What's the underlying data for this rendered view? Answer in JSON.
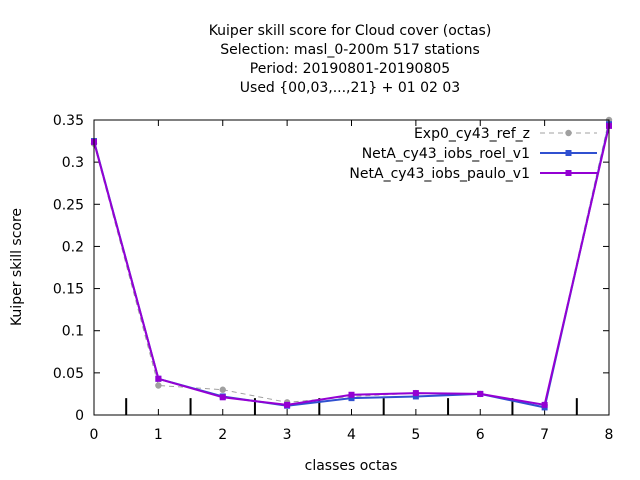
{
  "chart_data": {
    "type": "line",
    "title_lines": [
      "Kuiper skill score  for Cloud cover (octas)",
      "Selection: masl_0-200m    517 stations",
      "Period: 20190801-20190805",
      "Used {00,03,...,21} + 01 02 03"
    ],
    "xlabel": "classes octas",
    "ylabel": "Kuiper skill score",
    "xlim": [
      0,
      8
    ],
    "ylim": [
      0,
      0.35
    ],
    "x_ticks": [
      0,
      1,
      2,
      3,
      4,
      5,
      6,
      7,
      8
    ],
    "x_tick_labels": [
      "0",
      "1",
      "2",
      "3",
      "4",
      "5",
      "6",
      "7",
      "8"
    ],
    "y_ticks": [
      0,
      0.05,
      0.1,
      0.15,
      0.2,
      0.25,
      0.3,
      0.35
    ],
    "y_tick_labels": [
      "0",
      "0.05",
      "0.1",
      "0.15",
      "0.2",
      "0.25",
      "0.3",
      "0.35"
    ],
    "grid": false,
    "legend_position": "top-right",
    "x": [
      0,
      1,
      2,
      3,
      4,
      5,
      6,
      7,
      8
    ],
    "series": [
      {
        "name": "Exp0_cy43_ref_z",
        "color": "#a0a0a0",
        "dashed": true,
        "marker": "circle",
        "values": [
          0.322,
          0.035,
          0.03,
          0.015,
          0.022,
          0.026,
          0.025,
          0.012,
          0.35
        ]
      },
      {
        "name": "NetA_cy43_iobs_roel_v1",
        "color": "#3050d0",
        "dashed": false,
        "marker": "square",
        "values": [
          0.325,
          0.043,
          0.022,
          0.011,
          0.02,
          0.022,
          0.025,
          0.009,
          0.345
        ]
      },
      {
        "name": "NetA_cy43_iobs_paulo_v1",
        "color": "#9400d3",
        "dashed": false,
        "marker": "square",
        "values": [
          0.324,
          0.043,
          0.021,
          0.012,
          0.024,
          0.026,
          0.025,
          0.012,
          0.343
        ]
      }
    ],
    "class_markers_x": [
      0.5,
      1.5,
      2.5,
      3.5,
      4.5,
      5.5,
      6.5,
      7.5
    ],
    "class_markers_height": 0.02
  }
}
